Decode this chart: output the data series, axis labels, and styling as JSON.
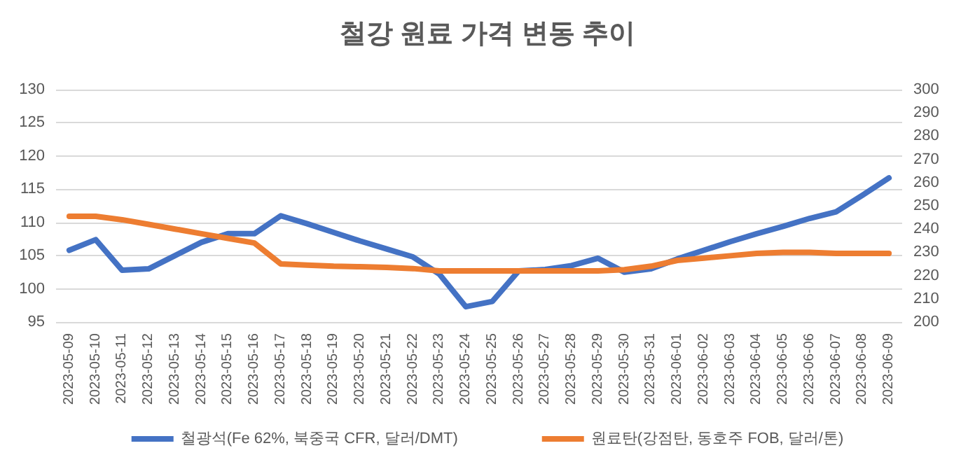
{
  "chart_data": {
    "type": "line",
    "title": "철강 원료 가격 변동 추이",
    "categories": [
      "2023-05-09",
      "2023-05-10",
      "2023-05-11",
      "2023-05-12",
      "2023-05-13",
      "2023-05-14",
      "2023-05-15",
      "2023-05-16",
      "2023-05-17",
      "2023-05-18",
      "2023-05-19",
      "2023-05-20",
      "2023-05-21",
      "2023-05-22",
      "2023-05-23",
      "2023-05-24",
      "2023-05-25",
      "2023-05-26",
      "2023-05-27",
      "2023-05-28",
      "2023-05-29",
      "2023-05-30",
      "2023-05-31",
      "2023-06-01",
      "2023-06-02",
      "2023-06-03",
      "2023-06-04",
      "2023-06-05",
      "2023-06-06",
      "2023-06-07",
      "2023-06-08",
      "2023-06-09"
    ],
    "series": [
      {
        "name": "철광석(Fe 62%, 북중국 CFR, 달러/DMT)",
        "color": "#4472c4",
        "values": [
          105.8,
          107.4,
          102.8,
          103,
          105,
          107,
          108.3,
          108.3,
          111,
          109.8,
          108.5,
          107.2,
          106,
          104.8,
          102.2,
          97.3,
          98.1,
          102.7,
          102.9,
          103.5,
          104.6,
          102.5,
          103,
          104.5,
          105.8,
          107.1,
          108.3,
          109.4,
          110.6,
          111.6,
          114.1,
          116.7
        ]
      },
      {
        "name": "원료탄(강점탄, 동호주 FOB, 달러/톤)",
        "color": "#ed7d31",
        "axis": "y2",
        "values": [
          245.5,
          245.5,
          244,
          242,
          240,
          238,
          236,
          234,
          225,
          224.5,
          224,
          223.8,
          223.5,
          223,
          222,
          222,
          222,
          222,
          222,
          222,
          222,
          222.5,
          224,
          226.5,
          227.5,
          228.5,
          229.5,
          230,
          230,
          229.5,
          229.5,
          229.5
        ]
      }
    ],
    "ylim": [
      95,
      130
    ],
    "yticks": [
      95,
      100,
      105,
      110,
      115,
      120,
      125,
      130
    ],
    "y2lim": [
      200,
      300
    ],
    "y2ticks": [
      200,
      210,
      220,
      230,
      240,
      250,
      260,
      270,
      280,
      290,
      300
    ],
    "grid": "y",
    "legend": "bottom",
    "marker": "none",
    "line_style": "solid"
  }
}
